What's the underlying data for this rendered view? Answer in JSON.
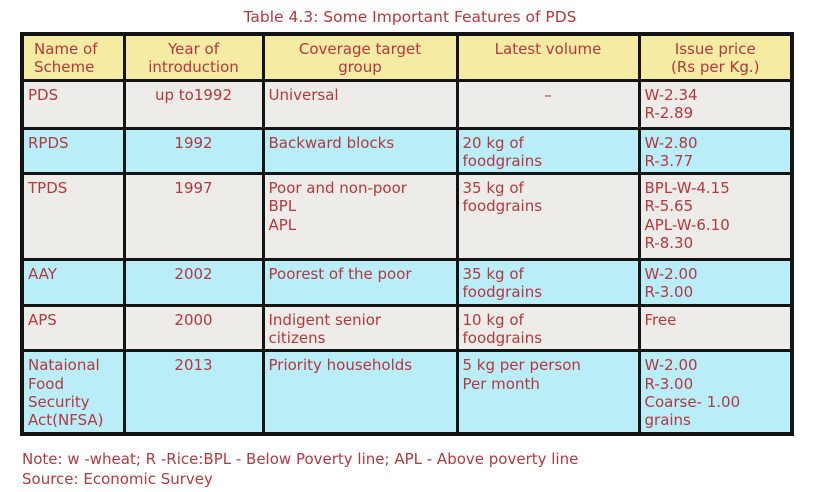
{
  "title": "Table 4.3: Some Important Features of PDS",
  "colors": {
    "header_bg": "#f5eba3",
    "row_gray_bg": "#eeece8",
    "row_cyan_bg": "#b9edf7",
    "text_red": "#b5383f",
    "border": "#141414",
    "page_bg": "#ffffff"
  },
  "table": {
    "headers": {
      "scheme": "Name of\nScheme",
      "year": "Year of\nintroduction",
      "coverage": "Coverage target\ngroup",
      "volume": "Latest volume",
      "price": "Issue price\n(Rs per Kg.)"
    },
    "rows": [
      {
        "scheme": "PDS",
        "year": "up to1992",
        "coverage": "Universal",
        "volume": "–",
        "price": "W-2.34\nR-2.89"
      },
      {
        "scheme": "RPDS",
        "year": "1992",
        "coverage": "Backward blocks",
        "volume": "20 kg of\nfoodgrains",
        "price": "W-2.80\nR-3.77"
      },
      {
        "scheme": "TPDS",
        "year": "1997",
        "coverage": "Poor and non-poor\nBPL\nAPL",
        "volume": "35 kg of\nfoodgrains",
        "price": "BPL-W-4.15\nR-5.65\nAPL-W-6.10\nR-8.30"
      },
      {
        "scheme": "AAY",
        "year": "2002",
        "coverage": "Poorest of the poor",
        "volume": "35 kg of\nfoodgrains",
        "price": "W-2.00\nR-3.00"
      },
      {
        "scheme": "APS",
        "year": "2000",
        "coverage": "Indigent senior\ncitizens",
        "volume": "10 kg of\nfoodgrains",
        "price": "Free"
      },
      {
        "scheme": "Nataional\nFood\nSecurity\nAct(NFSA)",
        "year": "2013",
        "coverage": "Priority households",
        "volume": "5 kg per person\nPer month",
        "price": "W-2.00\nR-3.00\nCoarse- 1.00\ngrains"
      }
    ]
  },
  "note": "Note: w -wheat; R -Rice:BPL - Below Poverty line; APL - Above poverty line",
  "source": "Source: Economic Survey"
}
